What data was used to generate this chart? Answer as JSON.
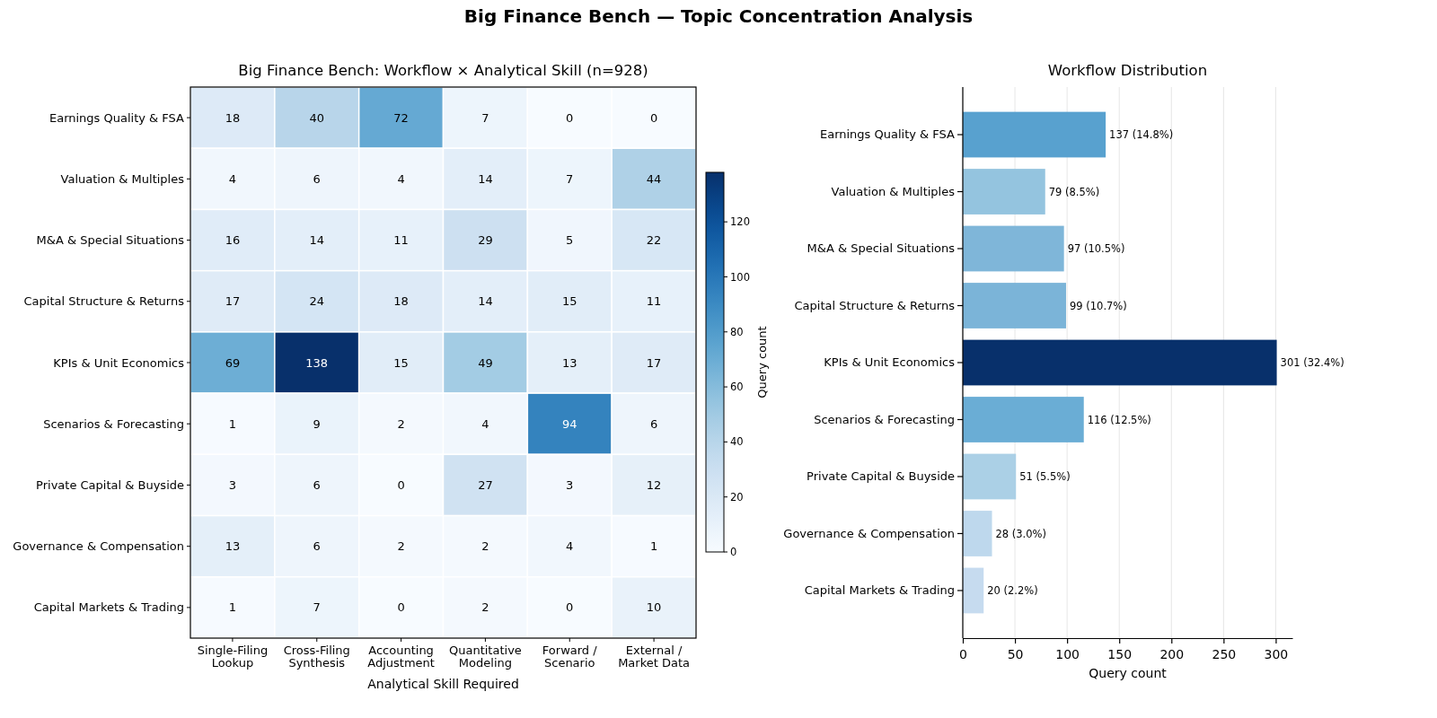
{
  "chart_data": [
    {
      "type": "heatmap",
      "title": "Big Finance Bench: Workflow × Analytical Skill (n=928)",
      "xlabel": "Analytical Skill Required",
      "clabel": "Query count",
      "annotations": [
        "Big Finance Bench — Topic Concentration Analysis"
      ],
      "categories": [
        "Single-Filing\nLookup",
        "Cross-Filing\nSynthesis",
        "Accounting\nAdjustment",
        "Quantitative\nModeling",
        "Forward /\nScenario",
        "External /\nMarket Data"
      ],
      "y_categories": [
        "Earnings Quality & FSA",
        "Valuation & Multiples",
        "M&A & Special Situations",
        "Capital Structure & Returns",
        "KPIs & Unit Economics",
        "Scenarios & Forecasting",
        "Private Capital & Buyside",
        "Governance & Compensation",
        "Capital Markets & Trading"
      ],
      "cells": [
        [
          18,
          40,
          72,
          7,
          0,
          0
        ],
        [
          4,
          6,
          4,
          14,
          7,
          44
        ],
        [
          16,
          14,
          11,
          29,
          5,
          22
        ],
        [
          17,
          24,
          18,
          14,
          15,
          11
        ],
        [
          69,
          138,
          15,
          49,
          13,
          17
        ],
        [
          1,
          9,
          2,
          4,
          94,
          6
        ],
        [
          3,
          6,
          0,
          27,
          3,
          12
        ],
        [
          13,
          6,
          2,
          2,
          4,
          1
        ],
        [
          1,
          7,
          0,
          2,
          0,
          10
        ]
      ],
      "clim": [
        0,
        138
      ],
      "cticks": [
        0,
        20,
        40,
        60,
        80,
        100,
        120
      ],
      "data_labels": true
    },
    {
      "type": "bar",
      "title": "Workflow Distribution",
      "xlabel": "Query count",
      "orientation": "horizontal",
      "categories": [
        "Earnings Quality & FSA",
        "Valuation & Multiples",
        "M&A & Special Situations",
        "Capital Structure & Returns",
        "KPIs & Unit Economics",
        "Scenarios & Forecasting",
        "Private Capital & Buyside",
        "Governance & Compensation",
        "Capital Markets & Trading"
      ],
      "values": [
        137,
        79,
        97,
        99,
        301,
        116,
        51,
        28,
        20
      ],
      "colors": [
        "#58a1cf",
        "#94c4df",
        "#7fb6d9",
        "#7bb4d8",
        "#08306b",
        "#6aadd5",
        "#abd0e6",
        "#bed8ed",
        "#c6dbef"
      ],
      "value_labels": [
        "137 (14.8%)",
        "79 (8.5%)",
        "97 (10.5%)",
        "99 (10.7%)",
        "301 (32.4%)",
        "116 (12.5%)",
        "51 (5.5%)",
        "28 (3.0%)",
        "20 (2.2%)"
      ],
      "xlim": [
        0,
        316
      ],
      "xticks": [
        0,
        50,
        100,
        150,
        200,
        250,
        300
      ],
      "grid": "x"
    }
  ]
}
